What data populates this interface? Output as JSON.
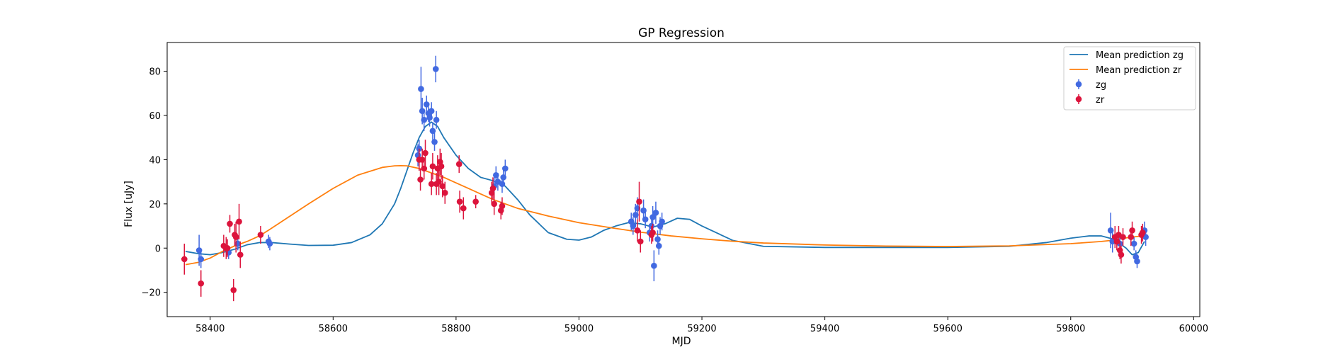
{
  "chart_data": {
    "type": "scatter",
    "title": "GP Regression",
    "xlabel": "MJD",
    "ylabel": "Flux [uJy]",
    "xlim": [
      58330,
      60010
    ],
    "ylim": [
      -31,
      93
    ],
    "xticks": [
      58400,
      58600,
      58800,
      59000,
      59200,
      59400,
      59600,
      59800,
      60000
    ],
    "yticks": [
      -20,
      0,
      20,
      40,
      60,
      80
    ],
    "grid": false,
    "legend_position": "top-right",
    "colors": {
      "mean_zg": "#1f77b4",
      "mean_zr": "#ff7f0e",
      "zg": "#4169e1",
      "zr": "#dc143c"
    },
    "lines": [
      {
        "name": "Mean prediction zg",
        "color": "#1f77b4",
        "x": [
          58360,
          58380,
          58400,
          58420,
          58440,
          58460,
          58480,
          58500,
          58530,
          58560,
          58600,
          58630,
          58660,
          58680,
          58700,
          58710,
          58720,
          58730,
          58740,
          58750,
          58760,
          58770,
          58780,
          58800,
          58820,
          58840,
          58860,
          58880,
          58900,
          58920,
          58950,
          58980,
          59000,
          59020,
          59040,
          59060,
          59080,
          59100,
          59120,
          59140,
          59160,
          59180,
          59200,
          59250,
          59300,
          59400,
          59500,
          59600,
          59700,
          59760,
          59800,
          59830,
          59850,
          59870,
          59880,
          59890,
          59900,
          59910,
          59920
        ],
        "y": [
          -1.5,
          -2.5,
          -3.0,
          -2.0,
          -0.5,
          1.5,
          2.5,
          2.5,
          1.8,
          1.2,
          1.3,
          2.5,
          6.0,
          11.0,
          20.0,
          27.0,
          35.0,
          43.0,
          50.0,
          55.0,
          57.0,
          55.0,
          50.0,
          42.0,
          36.0,
          32.0,
          30.5,
          28.0,
          22.0,
          15.0,
          7.0,
          4.0,
          3.6,
          5.0,
          8.0,
          10.0,
          11.5,
          11.0,
          9.5,
          11.0,
          13.5,
          13.0,
          10.0,
          3.5,
          0.8,
          0.3,
          0.3,
          0.3,
          0.8,
          2.5,
          4.5,
          5.5,
          5.5,
          4.0,
          2.0,
          0.0,
          -3.0,
          -2.0,
          3.0
        ]
      },
      {
        "name": "Mean prediction zr",
        "color": "#ff7f0e",
        "x": [
          58360,
          58380,
          58400,
          58420,
          58440,
          58460,
          58480,
          58500,
          58530,
          58560,
          58600,
          58640,
          58680,
          58700,
          58710,
          58720,
          58740,
          58760,
          58780,
          58800,
          58820,
          58840,
          58860,
          58880,
          58900,
          58950,
          59000,
          59050,
          59100,
          59150,
          59200,
          59250,
          59300,
          59400,
          59500,
          59600,
          59700,
          59800,
          59850,
          59870,
          59880,
          59890,
          59900,
          59910,
          59920
        ],
        "y": [
          -7.5,
          -6.5,
          -4.5,
          -1.5,
          1.0,
          3.0,
          5.5,
          9.0,
          14.5,
          20.0,
          27.0,
          33.0,
          36.5,
          37.2,
          37.3,
          37.2,
          36.0,
          34.0,
          32.0,
          29.5,
          27.0,
          24.5,
          22.0,
          20.0,
          18.0,
          14.5,
          11.5,
          9.3,
          7.2,
          5.5,
          4.2,
          3.1,
          2.3,
          1.4,
          0.9,
          0.7,
          1.0,
          2.0,
          3.0,
          3.6,
          4.2,
          4.6,
          5.0,
          5.3,
          5.5
        ]
      }
    ],
    "series": [
      {
        "name": "zg",
        "color": "#4169e1",
        "points": [
          {
            "x": 58382,
            "y": -1,
            "err": 7
          },
          {
            "x": 58385,
            "y": -5,
            "err": 4
          },
          {
            "x": 58430,
            "y": -2,
            "err": 3
          },
          {
            "x": 58445,
            "y": 2,
            "err": 3
          },
          {
            "x": 58495,
            "y": 3,
            "err": 3
          },
          {
            "x": 58497,
            "y": 2,
            "err": 3
          },
          {
            "x": 58738,
            "y": 42,
            "err": 5
          },
          {
            "x": 58740,
            "y": 45,
            "err": 4
          },
          {
            "x": 58743,
            "y": 72,
            "err": 10
          },
          {
            "x": 58745,
            "y": 62,
            "err": 6
          },
          {
            "x": 58748,
            "y": 58,
            "err": 5
          },
          {
            "x": 58752,
            "y": 65,
            "err": 4
          },
          {
            "x": 58755,
            "y": 61,
            "err": 4
          },
          {
            "x": 58757,
            "y": 59,
            "err": 4
          },
          {
            "x": 58760,
            "y": 62,
            "err": 4
          },
          {
            "x": 58762,
            "y": 53,
            "err": 4
          },
          {
            "x": 58765,
            "y": 48,
            "err": 4
          },
          {
            "x": 58768,
            "y": 58,
            "err": 4
          },
          {
            "x": 58767,
            "y": 81,
            "err": 6
          },
          {
            "x": 58862,
            "y": 28,
            "err": 4
          },
          {
            "x": 58865,
            "y": 33,
            "err": 4
          },
          {
            "x": 58868,
            "y": 30,
            "err": 4
          },
          {
            "x": 58875,
            "y": 29,
            "err": 4
          },
          {
            "x": 58877,
            "y": 32,
            "err": 4
          },
          {
            "x": 58880,
            "y": 36,
            "err": 4
          },
          {
            "x": 59085,
            "y": 12,
            "err": 4
          },
          {
            "x": 59088,
            "y": 10,
            "err": 4
          },
          {
            "x": 59092,
            "y": 15,
            "err": 5
          },
          {
            "x": 59095,
            "y": 18,
            "err": 5
          },
          {
            "x": 59105,
            "y": 17,
            "err": 5
          },
          {
            "x": 59108,
            "y": 13,
            "err": 4
          },
          {
            "x": 59115,
            "y": 7,
            "err": 4
          },
          {
            "x": 59118,
            "y": 10,
            "err": 5
          },
          {
            "x": 59120,
            "y": 14,
            "err": 5
          },
          {
            "x": 59122,
            "y": -8,
            "err": 7
          },
          {
            "x": 59125,
            "y": 16,
            "err": 5
          },
          {
            "x": 59128,
            "y": 4,
            "err": 4
          },
          {
            "x": 59130,
            "y": 1,
            "err": 4
          },
          {
            "x": 59132,
            "y": 10,
            "err": 4
          },
          {
            "x": 59135,
            "y": 12,
            "err": 4
          },
          {
            "x": 59865,
            "y": 8,
            "err": 8
          },
          {
            "x": 59868,
            "y": 3,
            "err": 5
          },
          {
            "x": 59880,
            "y": 2,
            "err": 4
          },
          {
            "x": 59903,
            "y": 2,
            "err": 3
          },
          {
            "x": 59906,
            "y": -4,
            "err": 3
          },
          {
            "x": 59908,
            "y": -6,
            "err": 3
          },
          {
            "x": 59920,
            "y": 8,
            "err": 4
          },
          {
            "x": 59922,
            "y": 5,
            "err": 4
          }
        ]
      },
      {
        "name": "zr",
        "color": "#dc143c",
        "points": [
          {
            "x": 58358,
            "y": -5,
            "err": 7
          },
          {
            "x": 58385,
            "y": -16,
            "err": 6
          },
          {
            "x": 58422,
            "y": 1,
            "err": 5
          },
          {
            "x": 58426,
            "y": 0,
            "err": 5
          },
          {
            "x": 58428,
            "y": 0,
            "err": 4
          },
          {
            "x": 58432,
            "y": 11,
            "err": 4
          },
          {
            "x": 58438,
            "y": -19,
            "err": 5
          },
          {
            "x": 58440,
            "y": 6,
            "err": 5
          },
          {
            "x": 58442,
            "y": 5,
            "err": 7
          },
          {
            "x": 58447,
            "y": 12,
            "err": 8
          },
          {
            "x": 58449,
            "y": -3,
            "err": 6
          },
          {
            "x": 58482,
            "y": 6,
            "err": 4
          },
          {
            "x": 58740,
            "y": 40,
            "err": 5
          },
          {
            "x": 58742,
            "y": 31,
            "err": 5
          },
          {
            "x": 58745,
            "y": 40,
            "err": 5
          },
          {
            "x": 58748,
            "y": 36,
            "err": 5
          },
          {
            "x": 58750,
            "y": 43,
            "err": 6
          },
          {
            "x": 58760,
            "y": 29,
            "err": 5
          },
          {
            "x": 58762,
            "y": 37,
            "err": 6
          },
          {
            "x": 58768,
            "y": 29,
            "err": 5
          },
          {
            "x": 58770,
            "y": 36,
            "err": 6
          },
          {
            "x": 58772,
            "y": 30,
            "err": 6
          },
          {
            "x": 58774,
            "y": 39,
            "err": 6
          },
          {
            "x": 58776,
            "y": 37,
            "err": 6
          },
          {
            "x": 58778,
            "y": 28,
            "err": 5
          },
          {
            "x": 58782,
            "y": 25,
            "err": 5
          },
          {
            "x": 58805,
            "y": 38,
            "err": 4
          },
          {
            "x": 58806,
            "y": 21,
            "err": 5
          },
          {
            "x": 58812,
            "y": 18,
            "err": 5
          },
          {
            "x": 58832,
            "y": 21,
            "err": 3
          },
          {
            "x": 58858,
            "y": 25,
            "err": 5
          },
          {
            "x": 58860,
            "y": 27,
            "err": 5
          },
          {
            "x": 58862,
            "y": 20,
            "err": 5
          },
          {
            "x": 58873,
            "y": 17,
            "err": 4
          },
          {
            "x": 58875,
            "y": 19,
            "err": 4
          },
          {
            "x": 59095,
            "y": 8,
            "err": 5
          },
          {
            "x": 59098,
            "y": 21,
            "err": 9
          },
          {
            "x": 59100,
            "y": 3,
            "err": 5
          },
          {
            "x": 59118,
            "y": 6,
            "err": 4
          },
          {
            "x": 59120,
            "y": 7,
            "err": 4
          },
          {
            "x": 59872,
            "y": 5,
            "err": 5
          },
          {
            "x": 59875,
            "y": 3,
            "err": 4
          },
          {
            "x": 59878,
            "y": 6,
            "err": 4
          },
          {
            "x": 59880,
            "y": -1,
            "err": 4
          },
          {
            "x": 59882,
            "y": -3,
            "err": 4
          },
          {
            "x": 59885,
            "y": 5,
            "err": 4
          },
          {
            "x": 59898,
            "y": 5,
            "err": 4
          },
          {
            "x": 59900,
            "y": 8,
            "err": 4
          },
          {
            "x": 59915,
            "y": 6,
            "err": 4
          },
          {
            "x": 59917,
            "y": 7,
            "err": 4
          }
        ]
      }
    ]
  }
}
